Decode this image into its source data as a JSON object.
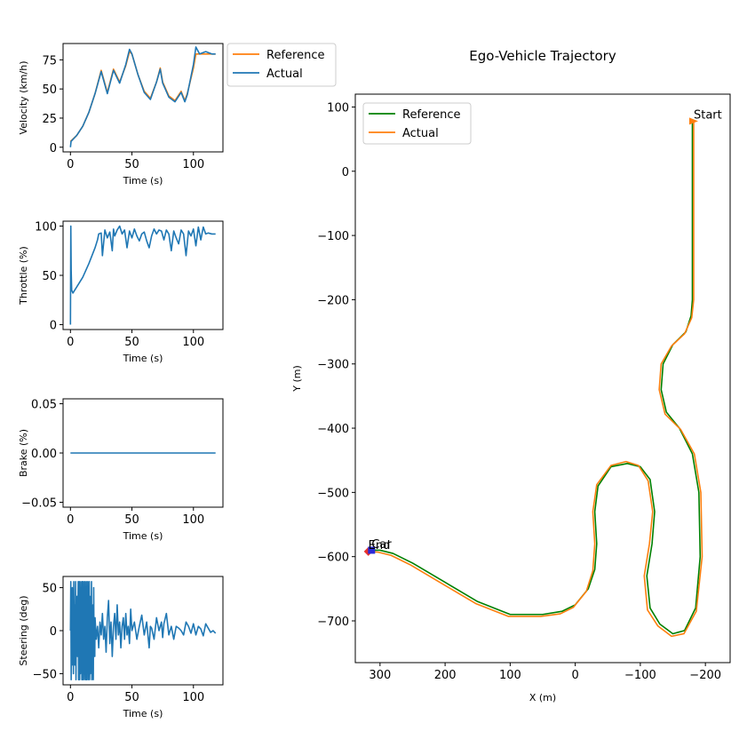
{
  "chart_data": [
    {
      "id": "velocity",
      "type": "line",
      "xlabel": "Time (s)",
      "ylabel": "Velocity (km/h)",
      "xlim": [
        -6,
        124
      ],
      "ylim": [
        -4,
        89
      ],
      "xticks": [
        0,
        50,
        100
      ],
      "yticks": [
        0,
        25,
        50,
        75
      ],
      "legend": {
        "position": "outside-right-top",
        "entries": [
          "Reference",
          "Actual"
        ]
      },
      "series": [
        {
          "name": "Reference",
          "color": "#ff7f0e",
          "x": [
            0,
            5,
            10,
            15,
            20,
            25,
            30,
            35,
            40,
            45,
            48,
            50,
            55,
            60,
            65,
            70,
            73,
            75,
            80,
            85,
            90,
            93,
            95,
            100,
            102,
            105,
            110,
            115,
            118
          ],
          "y": [
            5,
            10,
            18,
            30,
            46,
            66,
            47,
            67,
            56,
            70,
            82,
            80,
            62,
            48,
            42,
            56,
            68,
            56,
            44,
            40,
            48,
            40,
            46,
            68,
            80,
            80,
            80,
            80,
            80
          ]
        },
        {
          "name": "Actual",
          "color": "#1f77b4",
          "x": [
            0,
            0.5,
            5,
            10,
            15,
            20,
            25,
            30,
            35,
            40,
            45,
            48,
            50,
            55,
            60,
            65,
            70,
            73,
            75,
            80,
            85,
            90,
            93,
            95,
            100,
            102,
            105,
            110,
            115,
            118
          ],
          "y": [
            0,
            5,
            10,
            18,
            30,
            46,
            65,
            46,
            66,
            55,
            71,
            84,
            80,
            62,
            47,
            41,
            56,
            67,
            55,
            43,
            39,
            47,
            39,
            45,
            71,
            86,
            80,
            82,
            80,
            80
          ]
        }
      ]
    },
    {
      "id": "throttle",
      "type": "line",
      "xlabel": "Time (s)",
      "ylabel": "Throttle (%)",
      "xlim": [
        -6,
        124
      ],
      "ylim": [
        -5,
        105
      ],
      "xticks": [
        0,
        50,
        100
      ],
      "yticks": [
        0,
        50,
        100
      ],
      "series": [
        {
          "name": "Throttle",
          "color": "#1f77b4",
          "x": [
            0,
            0.3,
            0.6,
            1,
            2,
            5,
            10,
            15,
            20,
            22,
            23,
            25,
            26,
            28,
            30,
            32,
            34,
            35,
            36,
            38,
            40,
            42,
            44,
            46,
            48,
            50,
            52,
            54,
            56,
            58,
            60,
            62,
            64,
            66,
            68,
            70,
            72,
            74,
            76,
            78,
            80,
            82,
            84,
            86,
            88,
            90,
            92,
            94,
            96,
            98,
            100,
            102,
            104,
            106,
            108,
            110,
            112,
            115,
            118
          ],
          "y": [
            0,
            100,
            55,
            35,
            32,
            38,
            48,
            62,
            78,
            86,
            92,
            93,
            70,
            96,
            88,
            94,
            75,
            97,
            90,
            96,
            100,
            92,
            96,
            78,
            95,
            88,
            97,
            90,
            85,
            92,
            94,
            85,
            78,
            90,
            97,
            92,
            96,
            95,
            86,
            96,
            92,
            75,
            95,
            88,
            82,
            96,
            92,
            70,
            95,
            90,
            97,
            80,
            99,
            86,
            99,
            92,
            93,
            92,
            92
          ]
        }
      ]
    },
    {
      "id": "brake",
      "type": "line",
      "xlabel": "Time (s)",
      "ylabel": "Brake (%)",
      "xlim": [
        -6,
        124
      ],
      "ylim": [
        -0.055,
        0.055
      ],
      "xticks": [
        0,
        50,
        100
      ],
      "yticks": [
        0.05,
        0.0,
        -0.05
      ],
      "ytick_labels": [
        "0.05",
        "0.00",
        "−0.05"
      ],
      "series": [
        {
          "name": "Brake",
          "color": "#1f77b4",
          "x": [
            0,
            118
          ],
          "y": [
            0,
            0
          ]
        }
      ]
    },
    {
      "id": "steering",
      "type": "line",
      "xlabel": "Time (s)",
      "ylabel": "Steering (deg)",
      "xlim": [
        -6,
        124
      ],
      "ylim": [
        -63,
        63
      ],
      "xticks": [
        0,
        50,
        100
      ],
      "yticks": [
        50,
        0,
        -50
      ],
      "ytick_labels": [
        "50",
        "0",
        "−50"
      ],
      "series": [
        {
          "name": "Steering",
          "color": "#1f77b4",
          "x": [
            0,
            0.3,
            0.6,
            0.9,
            1.2,
            1.5,
            1.8,
            2.1,
            2.4,
            2.7,
            3,
            3.3,
            3.6,
            3.9,
            4.2,
            4.5,
            4.8,
            5.1,
            5.4,
            5.7,
            6,
            6.3,
            6.6,
            6.9,
            7.2,
            7.5,
            7.8,
            8.1,
            8.4,
            8.7,
            9,
            9.3,
            9.6,
            9.9,
            10.2,
            10.5,
            10.8,
            11.1,
            11.4,
            11.7,
            12,
            12.3,
            12.6,
            12.9,
            13.2,
            13.5,
            13.8,
            14.1,
            14.4,
            14.7,
            15,
            15.3,
            15.6,
            15.9,
            16.2,
            16.5,
            16.8,
            17.1,
            17.4,
            17.7,
            18,
            18.3,
            18.6,
            18.9,
            19.2,
            19.5,
            19.8,
            20,
            21,
            22,
            23,
            24,
            25,
            26,
            27,
            28,
            29,
            30,
            31,
            32,
            33,
            34,
            35,
            36,
            37,
            38,
            39,
            40,
            41,
            42,
            43,
            44,
            45,
            46,
            47,
            48,
            49,
            50,
            52,
            54,
            56,
            58,
            60,
            62,
            64,
            65,
            66,
            68,
            70,
            72,
            74,
            75,
            76,
            78,
            80,
            82,
            84,
            86,
            88,
            90,
            92,
            94,
            96,
            98,
            100,
            102,
            104,
            106,
            108,
            110,
            112,
            114,
            116,
            118
          ],
          "y": [
            0,
            57,
            -57,
            40,
            -40,
            50,
            -30,
            20,
            -50,
            57,
            -10,
            30,
            -40,
            10,
            57,
            -57,
            20,
            -20,
            40,
            -30,
            10,
            57,
            -57,
            -20,
            57,
            -57,
            30,
            -50,
            57,
            -40,
            20,
            -57,
            57,
            10,
            -57,
            57,
            -30,
            40,
            -57,
            57,
            -20,
            20,
            -57,
            57,
            -57,
            30,
            -40,
            57,
            -57,
            20,
            -10,
            57,
            -57,
            40,
            -50,
            10,
            -30,
            57,
            -57,
            20,
            -40,
            30,
            -57,
            50,
            -20,
            10,
            -30,
            15,
            -10,
            5,
            -20,
            10,
            -5,
            20,
            -10,
            5,
            -25,
            15,
            35,
            -15,
            10,
            -30,
            5,
            20,
            -10,
            30,
            -5,
            10,
            -20,
            5,
            15,
            -10,
            20,
            -5,
            5,
            -15,
            25,
            0,
            10,
            -10,
            5,
            18,
            -5,
            10,
            -20,
            5,
            3,
            -10,
            15,
            0,
            10,
            -8,
            8,
            20,
            -5,
            5,
            -10,
            5,
            3,
            0,
            -5,
            10,
            5,
            -3,
            8,
            -5,
            5,
            2,
            -6,
            8,
            3,
            -2,
            0,
            -3
          ]
        }
      ]
    },
    {
      "id": "trajectory",
      "type": "line",
      "title": "Ego-Vehicle Trajectory",
      "xlabel": "X (m)",
      "ylabel": "Y (m)",
      "xlim": [
        338,
        -238
      ],
      "ylim": [
        -765,
        120
      ],
      "xticks": [
        300,
        200,
        100,
        0,
        -100,
        -200
      ],
      "xtick_labels": [
        "300",
        "200",
        "100",
        "0",
        "−100",
        "−200"
      ],
      "yticks": [
        100,
        0,
        -100,
        -200,
        -300,
        -400,
        -500,
        -600,
        -700
      ],
      "ytick_labels": [
        "100",
        "0",
        "−100",
        "−200",
        "−300",
        "−400",
        "−500",
        "−600",
        "−700"
      ],
      "legend": {
        "position": "top-left",
        "entries": [
          "Reference",
          "Actual"
        ]
      },
      "annotations": [
        {
          "text": "Start",
          "x": -182,
          "y": 78
        },
        {
          "text": "End",
          "x": 318,
          "y": -592
        },
        {
          "text": "Car",
          "x": 313,
          "y": -591
        }
      ],
      "markers": [
        {
          "name": "start",
          "x": -182,
          "y": 78,
          "color": "#ff7f0e",
          "shape": "triangle"
        },
        {
          "name": "end",
          "x": 318,
          "y": -592,
          "color": "#e8322d",
          "shape": "diamond"
        },
        {
          "name": "car",
          "x": 313,
          "y": -590,
          "color": "#2a2ad8",
          "shape": "square"
        }
      ],
      "series": [
        {
          "name": "Reference",
          "color": "#008000",
          "x": [
            -180,
            -180,
            -178,
            -170,
            -150,
            -135,
            -132,
            -140,
            -160,
            -180,
            -190,
            -192,
            -185,
            -168,
            -150,
            -130,
            -115,
            -110,
            -118,
            -122,
            -115,
            -100,
            -80,
            -55,
            -35,
            -30,
            -33,
            -30,
            -20,
            0,
            20,
            50,
            100,
            150,
            200,
            250,
            280,
            300,
            313
          ],
          "y": [
            78,
            -200,
            -225,
            -250,
            -270,
            -300,
            -340,
            -375,
            -400,
            -440,
            -500,
            -600,
            -680,
            -715,
            -720,
            -705,
            -680,
            -630,
            -580,
            -530,
            -480,
            -460,
            -455,
            -460,
            -490,
            -530,
            -580,
            -620,
            -650,
            -675,
            -685,
            -690,
            -690,
            -670,
            -640,
            -610,
            -595,
            -590,
            -590
          ]
        },
        {
          "name": "Actual",
          "color": "#ff7f0e",
          "x": [
            -182,
            -182,
            -179,
            -168,
            -148,
            -132,
            -129,
            -138,
            -162,
            -183,
            -193,
            -195,
            -186,
            -167,
            -148,
            -127,
            -111,
            -106,
            -114,
            -119,
            -112,
            -97,
            -78,
            -55,
            -33,
            -27,
            -30,
            -27,
            -17,
            3,
            23,
            53,
            103,
            153,
            203,
            253,
            283,
            303,
            318
          ],
          "y": [
            78,
            -200,
            -228,
            -253,
            -272,
            -300,
            -340,
            -378,
            -402,
            -440,
            -500,
            -600,
            -685,
            -720,
            -724,
            -708,
            -683,
            -630,
            -580,
            -530,
            -482,
            -458,
            -452,
            -458,
            -488,
            -530,
            -580,
            -622,
            -654,
            -679,
            -689,
            -693,
            -693,
            -673,
            -643,
            -613,
            -598,
            -593,
            -592
          ]
        }
      ]
    }
  ]
}
